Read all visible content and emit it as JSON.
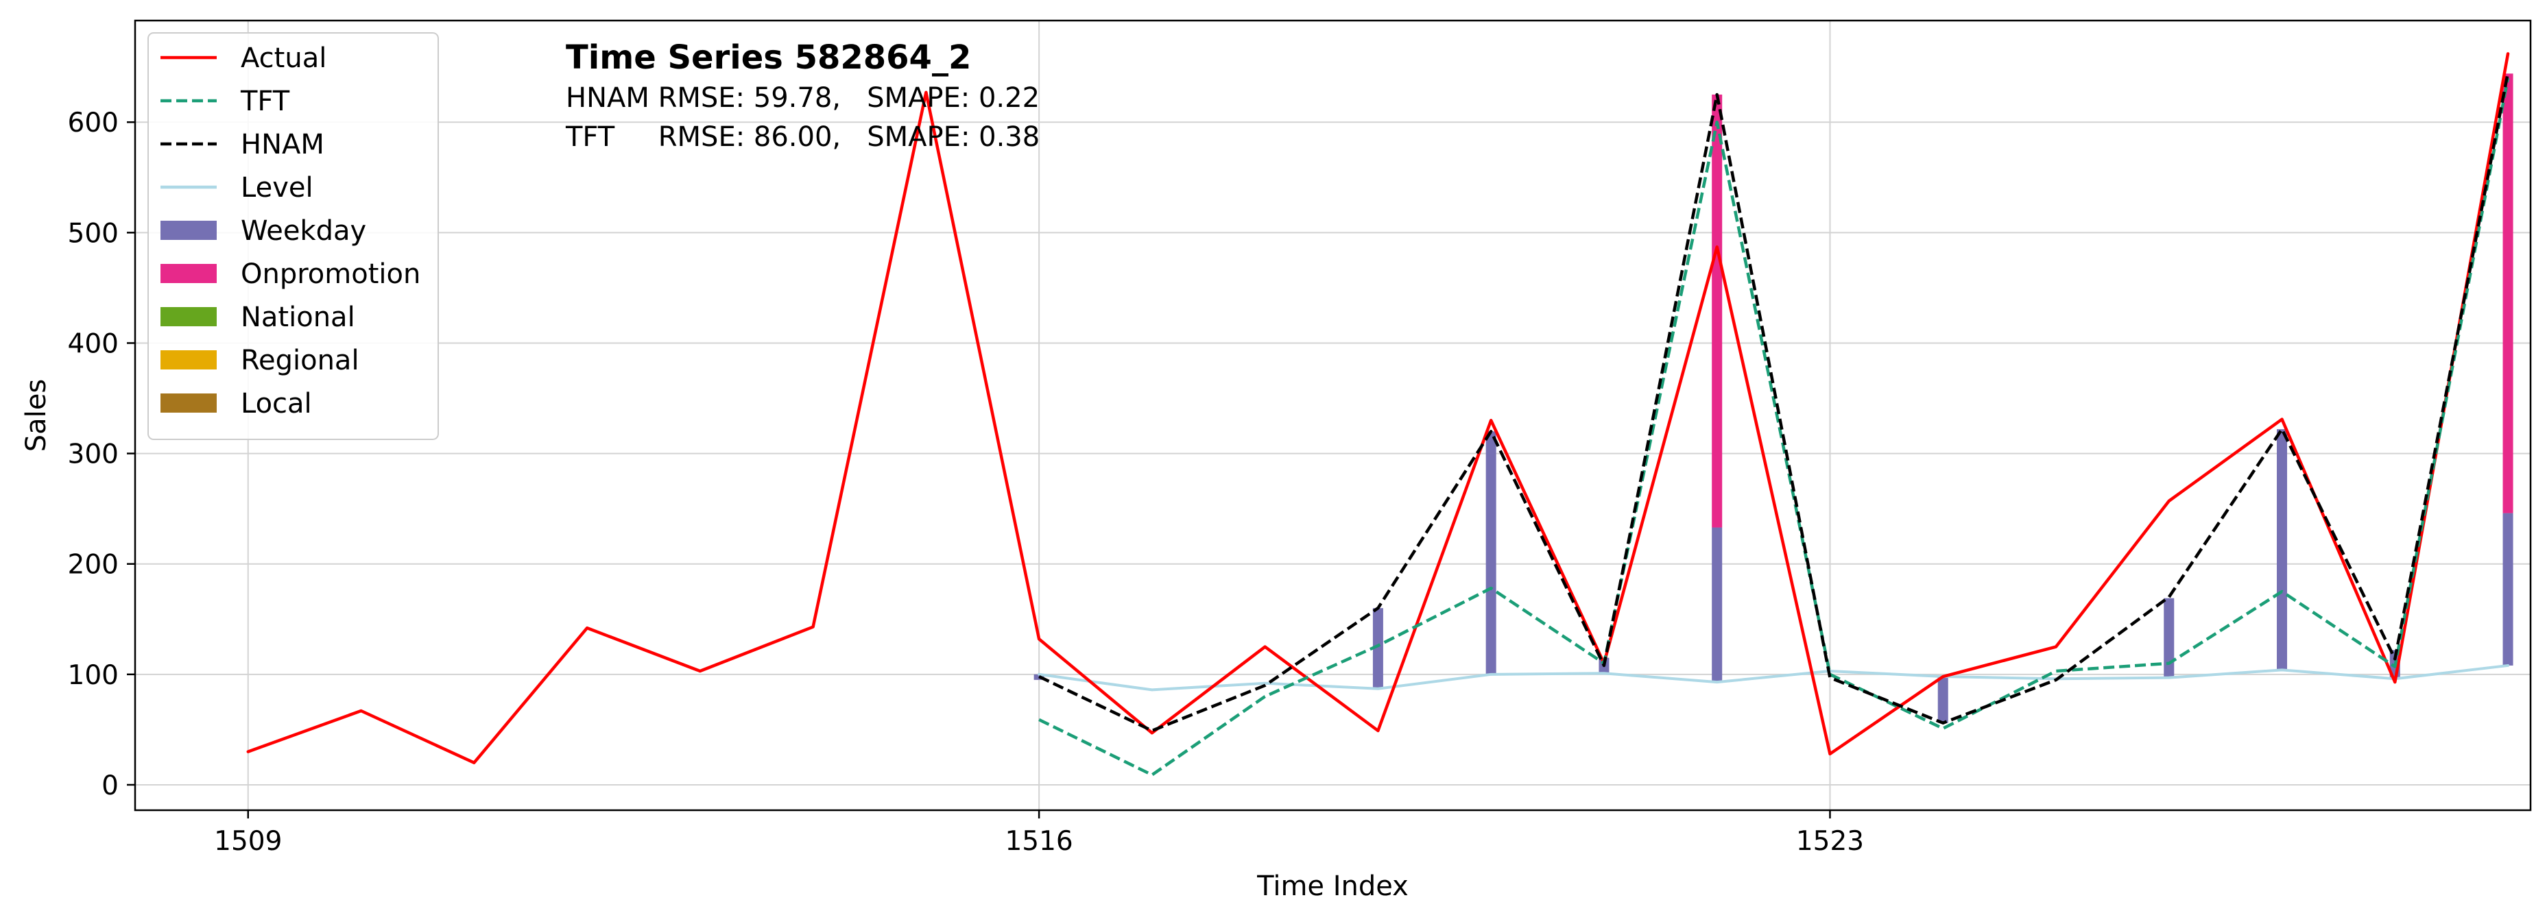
{
  "chart_data": {
    "type": "line",
    "title": "Time Series 582864_2",
    "metrics": {
      "hnam": "HNAM RMSE: 59.78,   SMAPE: 0.22",
      "tft": "TFT     RMSE: 86.00,   SMAPE: 0.38"
    },
    "xlabel": "Time Index",
    "ylabel": "Sales",
    "xlim": [
      1508.0,
      1529.2
    ],
    "ylim": [
      -23,
      692
    ],
    "x_ticks": [
      1509,
      1516,
      1523
    ],
    "y_ticks": [
      0,
      100,
      200,
      300,
      400,
      500,
      600
    ],
    "grid": true,
    "legend_position": "top-left",
    "legend": [
      {
        "label": "Actual",
        "kind": "line",
        "color": "#ff0000",
        "dash": "solid"
      },
      {
        "label": "TFT",
        "kind": "line",
        "color": "#1b9e77",
        "dash": "dashed"
      },
      {
        "label": "HNAM",
        "kind": "line",
        "color": "#000000",
        "dash": "dashed"
      },
      {
        "label": "Level",
        "kind": "line",
        "color": "#add8e6",
        "dash": "solid"
      },
      {
        "label": "Weekday",
        "kind": "bar",
        "color": "#7570b3"
      },
      {
        "label": "Onpromotion",
        "kind": "bar",
        "color": "#e7298a"
      },
      {
        "label": "National",
        "kind": "bar",
        "color": "#66a61e"
      },
      {
        "label": "Regional",
        "kind": "bar",
        "color": "#e6ab02"
      },
      {
        "label": "Local",
        "kind": "bar",
        "color": "#a6761d"
      }
    ],
    "series": [
      {
        "name": "Actual",
        "x": [
          1509,
          1510,
          1511,
          1512,
          1513,
          1514,
          1515,
          1516,
          1517,
          1518,
          1519,
          1520,
          1521,
          1522,
          1523,
          1524,
          1525,
          1526,
          1527,
          1528,
          1529
        ],
        "values": [
          30,
          67,
          20,
          142,
          103,
          143,
          627,
          132,
          47,
          125,
          49,
          330,
          110,
          487,
          28,
          98,
          125,
          257,
          331,
          93,
          662
        ]
      },
      {
        "name": "TFT",
        "x": [
          1516,
          1517,
          1518,
          1519,
          1520,
          1521,
          1522,
          1523,
          1524,
          1525,
          1526,
          1527,
          1528,
          1529
        ],
        "values": [
          59,
          9,
          80,
          126,
          178,
          110,
          600,
          100,
          51,
          103,
          110,
          175,
          107,
          640
        ]
      },
      {
        "name": "HNAM",
        "x": [
          1516,
          1517,
          1518,
          1519,
          1520,
          1521,
          1522,
          1523,
          1524,
          1525,
          1526,
          1527,
          1528,
          1529
        ],
        "values": [
          98,
          49,
          90,
          160,
          320,
          108,
          625,
          97,
          56,
          95,
          170,
          322,
          114,
          645
        ]
      },
      {
        "name": "Level",
        "x": [
          1516,
          1517,
          1518,
          1519,
          1520,
          1521,
          1522,
          1523,
          1524,
          1525,
          1526,
          1527,
          1528,
          1529
        ],
        "values": [
          100,
          86,
          92,
          87,
          100,
          101,
          93,
          103,
          98,
          96,
          97,
          104,
          96,
          108
        ]
      }
    ],
    "bars": {
      "x": [
        1516,
        1517,
        1518,
        1519,
        1520,
        1521,
        1522,
        1523,
        1524,
        1525,
        1526,
        1527,
        1528,
        1529
      ],
      "stacks": [
        {
          "name": "Weekday",
          "base_series": "Level",
          "values": [
            -5,
            0,
            0,
            73,
            220,
            14,
            140,
            0,
            -42,
            0,
            72,
            218,
            26,
            138
          ]
        },
        {
          "name": "Onpromotion",
          "values": [
            0,
            0,
            0,
            0,
            0,
            0,
            392,
            0,
            0,
            0,
            0,
            0,
            0,
            398
          ]
        }
      ]
    }
  }
}
